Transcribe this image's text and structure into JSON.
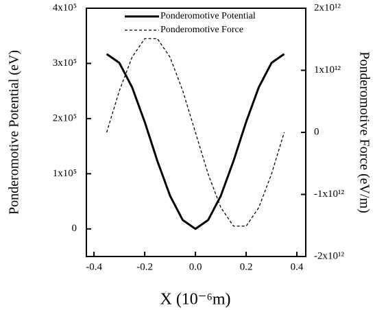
{
  "chart_data": {
    "type": "line",
    "x_label": "X (10⁻⁶m)",
    "y_label": "Ponderomotive Potential (eV)",
    "y2_label": "Ponderomotive Force (eV/m)",
    "x": [
      -0.35,
      -0.3,
      -0.25,
      -0.2,
      -0.15,
      -0.1,
      -0.05,
      0,
      0.05,
      0.1,
      0.15,
      0.2,
      0.25,
      0.3,
      0.35
    ],
    "series": [
      {
        "name": "Ponderomotive Potential",
        "color": "#000000",
        "dash": "solid",
        "values": [
          317000,
          301000,
          257000,
          194000,
          123000,
          60000,
          16000,
          0,
          16000,
          60000,
          123000,
          194000,
          257000,
          301000,
          317000
        ]
      },
      {
        "name": "Ponderomotive Force",
        "color": "#000000",
        "dash": "dashed",
        "axis": "y2",
        "values": [
          0,
          670000000000,
          1210000000000,
          1510000000000,
          1510000000000,
          1210000000000,
          670000000000,
          0,
          -670000000000,
          -1210000000000,
          -1510000000000,
          -1510000000000,
          -1210000000000,
          -670000000000,
          0
        ]
      }
    ],
    "xlim": [
      -0.43,
      0.435
    ],
    "xticks": [
      {
        "value": -0.4,
        "label": "-0.4"
      },
      {
        "value": -0.2,
        "label": "-0.2"
      },
      {
        "value": 0,
        "label": "0.0"
      },
      {
        "value": 0.2,
        "label": "0.2"
      },
      {
        "value": 0.4,
        "label": "0.4"
      }
    ],
    "ylim": [
      -50000,
      400000
    ],
    "yticks": [
      0,
      {
        "value": 100000,
        "label": "1x10⁵"
      },
      {
        "value": 200000,
        "label": "2x10⁵"
      },
      {
        "value": 300000,
        "label": "3x10⁵"
      },
      {
        "value": 400000,
        "label": "4x10⁵"
      }
    ],
    "y2lim": [
      -2000000000000,
      2000000000000
    ],
    "y2ticks": [
      {
        "value": -2000000000000,
        "label": "-2x10¹²"
      },
      {
        "value": -1000000000000,
        "label": "-1x10¹²"
      },
      0,
      {
        "value": 1000000000000,
        "label": "1x10¹²"
      },
      {
        "value": 2000000000000,
        "label": "2x10¹²"
      }
    ],
    "legend": "top-right"
  }
}
